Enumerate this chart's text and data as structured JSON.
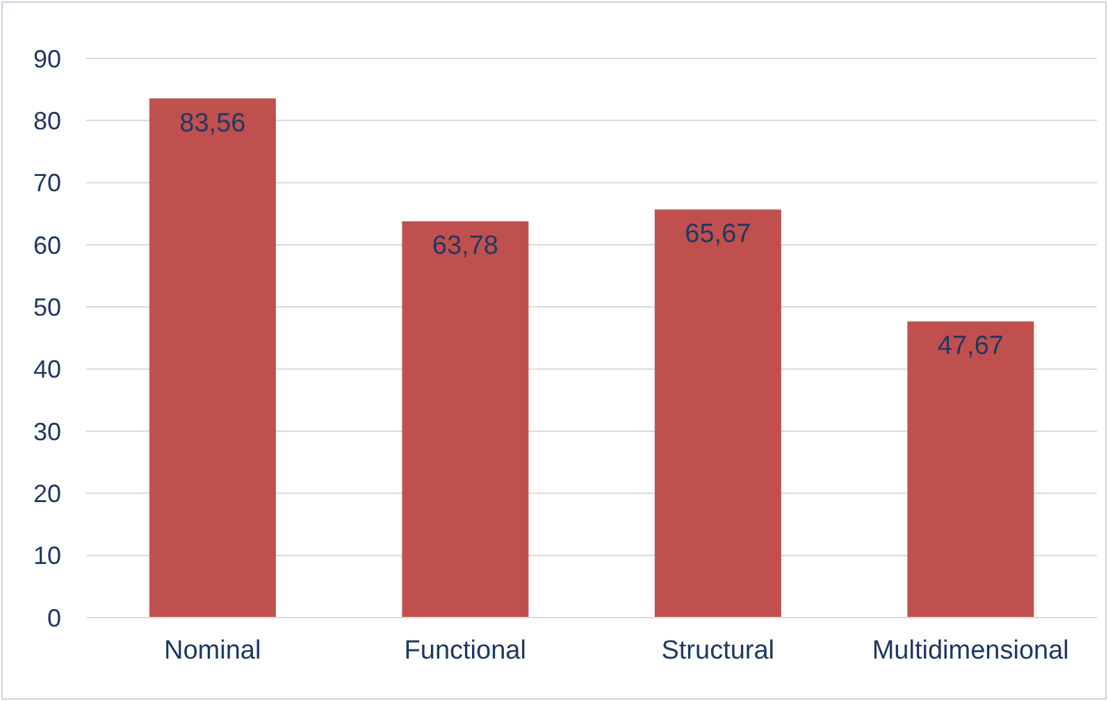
{
  "chart_data": {
    "type": "bar",
    "categories": [
      "Nominal",
      "Functional",
      "Structural",
      "Multidimensional"
    ],
    "values": [
      83.56,
      63.78,
      65.67,
      47.67
    ],
    "value_labels": [
      "83,56",
      "63,78",
      "65,67",
      "47,67"
    ],
    "color": "#c0504d",
    "ylim": [
      0,
      90
    ],
    "yticks": [
      0,
      10,
      20,
      30,
      40,
      50,
      60,
      70,
      80,
      90
    ],
    "grid": "y"
  }
}
